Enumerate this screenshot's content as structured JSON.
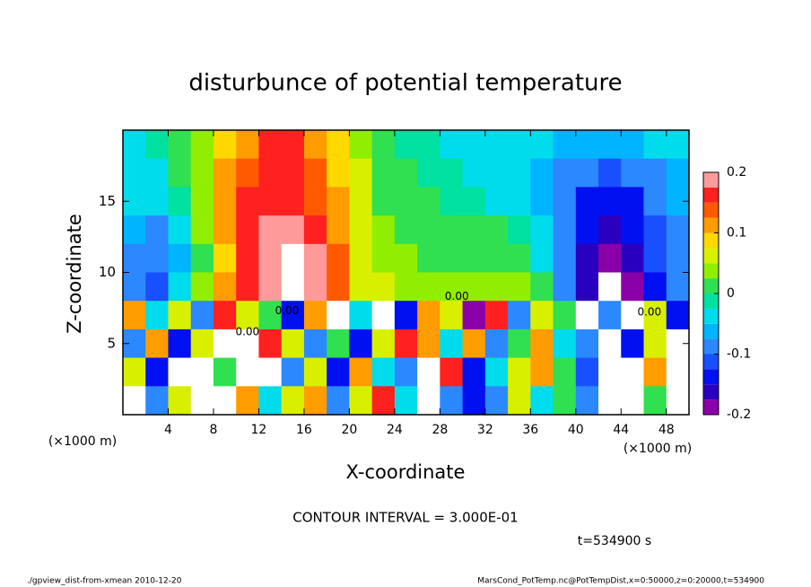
{
  "chart_data": {
    "type": "heatmap",
    "title": "disturbunce of potential temperature",
    "x_label": "X-coordinate",
    "y_label": "Z-coordinate",
    "x_unit": "(×1000 m)",
    "xlim": [
      0,
      50
    ],
    "ylim": [
      0,
      20
    ],
    "xticks": [
      4,
      8,
      12,
      16,
      20,
      24,
      28,
      32,
      36,
      40,
      44,
      48
    ],
    "yticks": [
      5,
      10,
      15
    ],
    "x": [
      1,
      3,
      5,
      7,
      9,
      11,
      13,
      15,
      17,
      19,
      21,
      23,
      25,
      27,
      29,
      31,
      33,
      35,
      37,
      39,
      41,
      43,
      45,
      47,
      49
    ],
    "y": [
      19,
      17,
      15,
      13,
      11,
      9,
      7,
      5,
      3,
      1
    ],
    "z": [
      [
        -0.03,
        -0.02,
        0.0,
        0.03,
        0.08,
        0.12,
        0.15,
        0.15,
        0.12,
        0.08,
        0.04,
        0.01,
        -0.01,
        -0.02,
        -0.03,
        -0.04,
        -0.04,
        -0.05,
        -0.05,
        -0.06,
        -0.07,
        -0.07,
        -0.06,
        -0.05,
        -0.04
      ],
      [
        -0.04,
        -0.03,
        0.0,
        0.04,
        0.1,
        0.14,
        0.16,
        0.16,
        0.13,
        0.09,
        0.05,
        0.02,
        0.0,
        -0.01,
        -0.02,
        -0.03,
        -0.04,
        -0.05,
        -0.06,
        -0.08,
        -0.1,
        -0.11,
        -0.1,
        -0.08,
        -0.06
      ],
      [
        -0.05,
        -0.05,
        -0.01,
        0.04,
        0.1,
        0.15,
        0.17,
        0.17,
        0.14,
        0.1,
        0.05,
        0.02,
        0.01,
        0.0,
        -0.01,
        -0.02,
        -0.03,
        -0.05,
        -0.07,
        -0.1,
        -0.13,
        -0.14,
        -0.13,
        -0.1,
        -0.07
      ],
      [
        -0.06,
        -0.08,
        -0.04,
        0.03,
        0.1,
        0.15,
        0.18,
        0.19,
        0.16,
        0.12,
        0.06,
        0.03,
        0.02,
        0.01,
        0.01,
        0.0,
        0.0,
        -0.02,
        -0.05,
        -0.1,
        -0.15,
        -0.16,
        -0.15,
        -0.11,
        -0.08
      ],
      [
        -0.08,
        -0.1,
        -0.06,
        0.02,
        0.09,
        0.15,
        0.19,
        0.21,
        0.18,
        0.13,
        0.06,
        0.04,
        0.03,
        0.02,
        0.02,
        0.02,
        0.01,
        0.0,
        -0.03,
        -0.09,
        -0.16,
        -0.18,
        -0.17,
        -0.12,
        -0.09
      ],
      [
        -0.1,
        -0.12,
        -0.05,
        0.03,
        0.1,
        0.15,
        0.19,
        0.2,
        0.18,
        0.13,
        0.07,
        0.05,
        0.04,
        0.03,
        0.04,
        0.04,
        0.03,
        0.03,
        0.0,
        -0.08,
        -0.17,
        -0.21,
        -0.19,
        -0.13,
        -0.1
      ],
      [
        0.1,
        -0.05,
        0.05,
        -0.1,
        0.15,
        0.05,
        0.0,
        -0.15,
        0.1,
        0.2,
        -0.05,
        0.3,
        -0.15,
        0.1,
        0.05,
        -0.2,
        0.15,
        -0.1,
        0.05,
        0.0,
        0.3,
        -0.1,
        0.3,
        0.05,
        -0.15
      ],
      [
        -0.1,
        0.1,
        -0.15,
        0.05,
        0.3,
        0.3,
        0.15,
        0.05,
        -0.1,
        0.0,
        -0.15,
        0.05,
        0.15,
        0.1,
        -0.05,
        0.1,
        -0.1,
        0.0,
        0.1,
        -0.05,
        -0.1,
        0.3,
        -0.15,
        0.05,
        0.3
      ],
      [
        0.05,
        -0.15,
        0.3,
        0.3,
        0.0,
        0.3,
        0.3,
        -0.1,
        0.05,
        -0.15,
        0.1,
        -0.05,
        -0.1,
        0.3,
        0.15,
        -0.15,
        -0.05,
        0.05,
        0.1,
        0.0,
        -0.12,
        0.3,
        0.3,
        0.1,
        0.3
      ],
      [
        0.3,
        -0.1,
        0.05,
        0.3,
        0.3,
        0.1,
        -0.05,
        0.05,
        0.1,
        -0.1,
        0.05,
        0.15,
        -0.05,
        0.3,
        -0.1,
        -0.15,
        -0.1,
        0.05,
        -0.05,
        0.0,
        -0.1,
        0.3,
        0.3,
        0.0,
        0.3
      ]
    ],
    "colorbar": {
      "levels": [
        -0.2,
        -0.175,
        -0.15,
        -0.125,
        -0.1,
        -0.075,
        -0.05,
        -0.025,
        0,
        0.025,
        0.05,
        0.075,
        0.1,
        0.125,
        0.15,
        0.175,
        0.2
      ],
      "colors": [
        "#8a00a8",
        "#2a00c0",
        "#0010f0",
        "#1850ff",
        "#2c88ff",
        "#00b4ff",
        "#00dcec",
        "#00e0a0",
        "#30e050",
        "#90ee00",
        "#d8f000",
        "#ffd800",
        "#ff9c00",
        "#ff5a00",
        "#ff2020",
        "#ff9a9a"
      ],
      "out_of_range_color": "#ffffff",
      "ticks": [
        -0.2,
        -0.1,
        0,
        0.1,
        0.2
      ]
    },
    "contour_labels": [
      "0.00",
      "0.00",
      "0.00",
      "0.00"
    ],
    "contour_interval": "CONTOUR INTERVAL = 3.000E-01",
    "time_label": "t=534900 s",
    "footer_left": "./gpview_dist-from-xmean  2010-12-20",
    "footer_right": "MarsCond_PotTemp.nc@PotTempDist,x=0:50000,z=0:20000,t=534900"
  }
}
